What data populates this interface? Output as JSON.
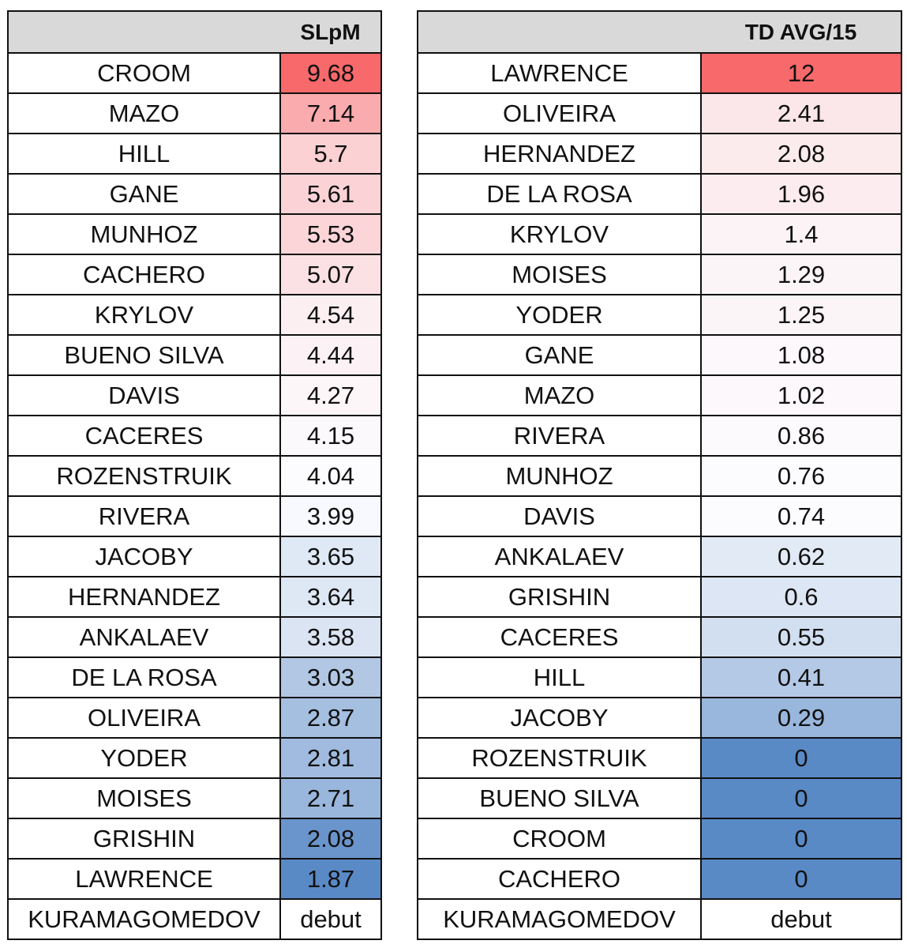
{
  "left_table": {
    "header": "SLpM",
    "rows": [
      {
        "name": "CROOM",
        "value": "9.68"
      },
      {
        "name": "MAZO",
        "value": "7.14"
      },
      {
        "name": "HILL",
        "value": "5.7"
      },
      {
        "name": "GANE",
        "value": "5.61"
      },
      {
        "name": "MUNHOZ",
        "value": "5.53"
      },
      {
        "name": "CACHERO",
        "value": "5.07"
      },
      {
        "name": "KRYLOV",
        "value": "4.54"
      },
      {
        "name": "BUENO SILVA",
        "value": "4.44"
      },
      {
        "name": "DAVIS",
        "value": "4.27"
      },
      {
        "name": "CACERES",
        "value": "4.15"
      },
      {
        "name": "ROZENSTRUIK",
        "value": "4.04"
      },
      {
        "name": "RIVERA",
        "value": "3.99"
      },
      {
        "name": "JACOBY",
        "value": "3.65"
      },
      {
        "name": "HERNANDEZ",
        "value": "3.64"
      },
      {
        "name": "ANKALAEV",
        "value": "3.58"
      },
      {
        "name": "DE LA ROSA",
        "value": "3.03"
      },
      {
        "name": "OLIVEIRA",
        "value": "2.87"
      },
      {
        "name": "YODER",
        "value": "2.81"
      },
      {
        "name": "MOISES",
        "value": "2.71"
      },
      {
        "name": "GRISHIN",
        "value": "2.08"
      },
      {
        "name": "LAWRENCE",
        "value": "1.87"
      },
      {
        "name": "KURAMAGOMEDOV",
        "value": "debut"
      }
    ]
  },
  "right_table": {
    "header": "TD AVG/15",
    "rows": [
      {
        "name": "LAWRENCE",
        "value": "12"
      },
      {
        "name": "OLIVEIRA",
        "value": "2.41"
      },
      {
        "name": "HERNANDEZ",
        "value": "2.08"
      },
      {
        "name": "DE LA ROSA",
        "value": "1.96"
      },
      {
        "name": "KRYLOV",
        "value": "1.4"
      },
      {
        "name": "MOISES",
        "value": "1.29"
      },
      {
        "name": "YODER",
        "value": "1.25"
      },
      {
        "name": "GANE",
        "value": "1.08"
      },
      {
        "name": "MAZO",
        "value": "1.02"
      },
      {
        "name": "RIVERA",
        "value": "0.86"
      },
      {
        "name": "MUNHOZ",
        "value": "0.76"
      },
      {
        "name": "DAVIS",
        "value": "0.74"
      },
      {
        "name": "ANKALAEV",
        "value": "0.62"
      },
      {
        "name": "GRISHIN",
        "value": "0.6"
      },
      {
        "name": "CACERES",
        "value": "0.55"
      },
      {
        "name": "HILL",
        "value": "0.41"
      },
      {
        "name": "JACOBY",
        "value": "0.29"
      },
      {
        "name": "ROZENSTRUIK",
        "value": "0"
      },
      {
        "name": "BUENO SILVA",
        "value": "0"
      },
      {
        "name": "CROOM",
        "value": "0"
      },
      {
        "name": "CACHERO",
        "value": "0"
      },
      {
        "name": "KURAMAGOMEDOV",
        "value": "debut"
      }
    ]
  },
  "chart_data": [
    {
      "type": "table",
      "columns": [
        "",
        "SLpM"
      ],
      "categories": [
        "CROOM",
        "MAZO",
        "HILL",
        "GANE",
        "MUNHOZ",
        "CACHERO",
        "KRYLOV",
        "BUENO SILVA",
        "DAVIS",
        "CACERES",
        "ROZENSTRUIK",
        "RIVERA",
        "JACOBY",
        "HERNANDEZ",
        "ANKALAEV",
        "DE LA ROSA",
        "OLIVEIRA",
        "YODER",
        "MOISES",
        "GRISHIN",
        "LAWRENCE",
        "KURAMAGOMEDOV"
      ],
      "values": [
        9.68,
        7.14,
        5.7,
        5.61,
        5.53,
        5.07,
        4.54,
        4.44,
        4.27,
        4.15,
        4.04,
        3.99,
        3.65,
        3.64,
        3.58,
        3.03,
        2.87,
        2.81,
        2.71,
        2.08,
        1.87,
        "debut"
      ],
      "color_scale": {
        "low": "#5a8ac6",
        "mid": "#fcfcff",
        "high": "#f8696b",
        "mid_value": 4.04
      }
    },
    {
      "type": "table",
      "columns": [
        "",
        "TD AVG/15"
      ],
      "categories": [
        "LAWRENCE",
        "OLIVEIRA",
        "HERNANDEZ",
        "DE LA ROSA",
        "KRYLOV",
        "MOISES",
        "YODER",
        "GANE",
        "MAZO",
        "RIVERA",
        "MUNHOZ",
        "DAVIS",
        "ANKALAEV",
        "GRISHIN",
        "CACERES",
        "HILL",
        "JACOBY",
        "ROZENSTRUIK",
        "BUENO SILVA",
        "CROOM",
        "CACHERO",
        "KURAMAGOMEDOV"
      ],
      "values": [
        12,
        2.41,
        2.08,
        1.96,
        1.4,
        1.29,
        1.25,
        1.08,
        1.02,
        0.86,
        0.76,
        0.74,
        0.62,
        0.6,
        0.55,
        0.41,
        0.29,
        0,
        0,
        0,
        0,
        "debut"
      ],
      "color_scale": {
        "low": "#5a8ac6",
        "mid": "#fcfcff",
        "high": "#f8696b",
        "mid_value": 0.74
      }
    }
  ]
}
